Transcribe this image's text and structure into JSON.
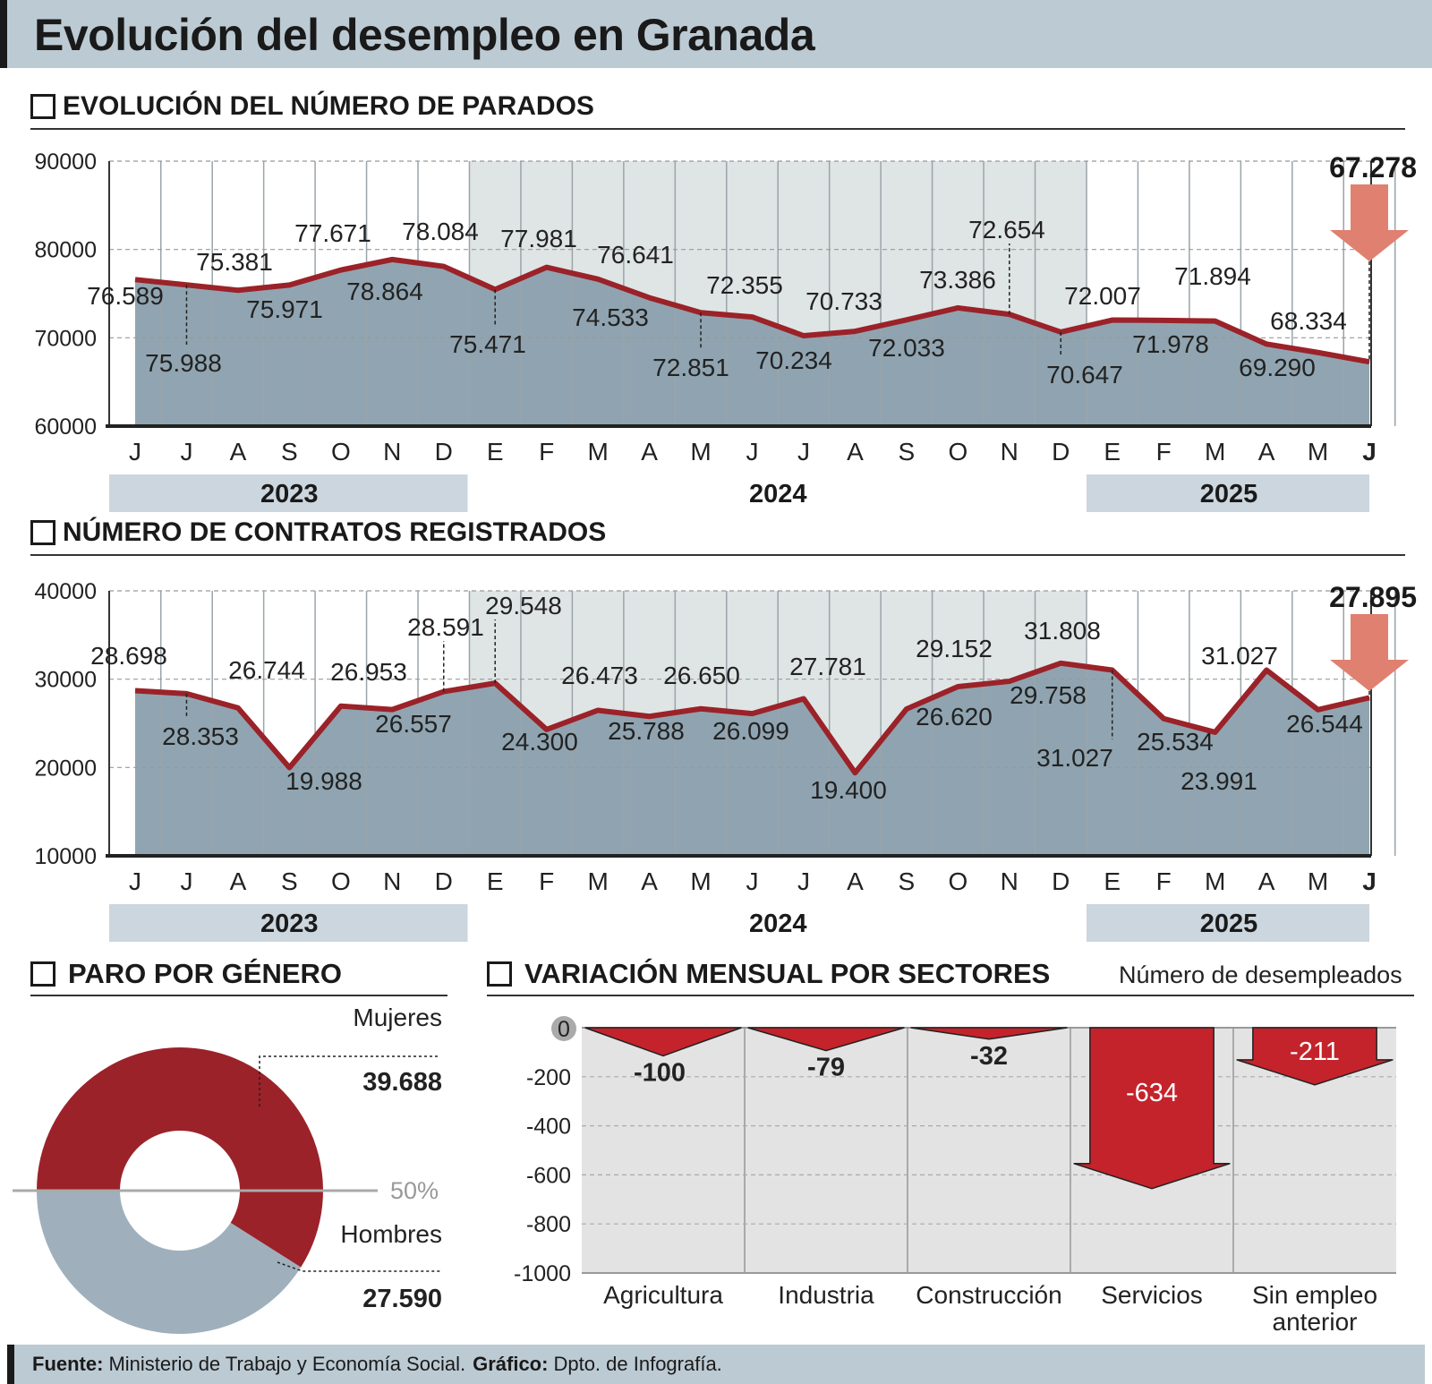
{
  "title": "Evolución del desempleo en Granada",
  "colors": {
    "line": "#9b2229",
    "area": "#8aa0ad",
    "shade": "#dfe5e4",
    "arrow": "#e08070",
    "bar_red": "#c4232b",
    "female": "#9b2229",
    "male": "#9fb0bc",
    "year_band": "#ccd6de",
    "header": "#bccad3"
  },
  "chart_data": [
    {
      "type": "area",
      "section_title": "EVOLUCIÓN DEL NÚMERO DE PARADOS",
      "months": [
        "J",
        "J",
        "A",
        "S",
        "O",
        "N",
        "D",
        "E",
        "F",
        "M",
        "A",
        "M",
        "J",
        "J",
        "A",
        "S",
        "O",
        "N",
        "D",
        "E",
        "F",
        "M",
        "A",
        "M",
        "J"
      ],
      "values": [
        76589,
        75988,
        75381,
        75971,
        77671,
        78864,
        78084,
        75471,
        77981,
        76641,
        74533,
        72851,
        72355,
        70234,
        70733,
        72033,
        73386,
        72654,
        70647,
        72007,
        71978,
        71894,
        69290,
        68334,
        67278
      ],
      "labels": [
        "76.589",
        "75.988",
        "75.381",
        "75.971",
        "77.671",
        "78.864",
        "78.084",
        "75.471",
        "77.981",
        "76.641",
        "74.533",
        "72.851",
        "72.355",
        "70.234",
        "70.733",
        "72.033",
        "73.386",
        "72.654",
        "70.647",
        "72.007",
        "71.978",
        "71.894",
        "69.290",
        "68.334",
        "67.278"
      ],
      "ylim": [
        60000,
        90000
      ],
      "yticks": [
        "60000",
        "70000",
        "80000",
        "90000"
      ],
      "years": [
        "2023",
        "2024",
        "2025"
      ],
      "highlight": "67.278"
    },
    {
      "type": "area",
      "section_title": "NÚMERO DE CONTRATOS REGISTRADOS",
      "months": [
        "J",
        "J",
        "A",
        "S",
        "O",
        "N",
        "D",
        "E",
        "F",
        "M",
        "A",
        "M",
        "J",
        "J",
        "A",
        "S",
        "O",
        "N",
        "D",
        "E",
        "F",
        "M",
        "A",
        "M",
        "J"
      ],
      "values": [
        28698,
        28353,
        26744,
        19988,
        26953,
        26557,
        28591,
        29548,
        24300,
        26473,
        25788,
        26650,
        26099,
        27781,
        19400,
        26620,
        29152,
        29758,
        31808,
        31027,
        25534,
        23991,
        31027,
        26544,
        27895
      ],
      "labels": [
        "28.698",
        "28.353",
        "26.744",
        "19.988",
        "26.953",
        "26.557",
        "28.591",
        "29.548",
        "24.300",
        "26.473",
        "25.788",
        "26.650",
        "26.099",
        "27.781",
        "19.400",
        "26.620",
        "29.152",
        "29.758",
        "31.808",
        "31.027",
        "25.534",
        "23.991",
        "31.027",
        "26.544",
        "27.895"
      ],
      "ylim": [
        10000,
        40000
      ],
      "yticks": [
        "10000",
        "20000",
        "30000",
        "40000"
      ],
      "years": [
        "2023",
        "2024",
        "2025"
      ],
      "highlight": "27.895"
    },
    {
      "type": "pie",
      "section_title": "PARO POR GÉNERO",
      "slices": [
        {
          "name": "Mujeres",
          "value": 39688,
          "label": "39.688"
        },
        {
          "name": "Hombres",
          "value": 27590,
          "label": "27.590"
        }
      ],
      "reference": "50%"
    },
    {
      "type": "bar",
      "section_title": "VARIACIÓN MENSUAL POR SECTORES",
      "subtitle": "Número de desempleados",
      "categories": [
        "Agricultura",
        "Industria",
        "Construcción",
        "Servicios",
        "Sin empleo anterior"
      ],
      "values": [
        -100,
        -79,
        -32,
        -634,
        -211
      ],
      "labels": [
        "-100",
        "-79",
        "-32",
        "-634",
        "-211"
      ],
      "ylim": [
        -1000,
        0
      ],
      "yticks": [
        "0",
        "-200",
        "-400",
        "-600",
        "-800",
        "-1000"
      ]
    }
  ],
  "footer": {
    "source_label": "Fuente:",
    "source": "Ministerio de Trabajo y Economía Social.",
    "graphic_label": "Gráfico:",
    "graphic": "Dpto. de Infografía."
  }
}
